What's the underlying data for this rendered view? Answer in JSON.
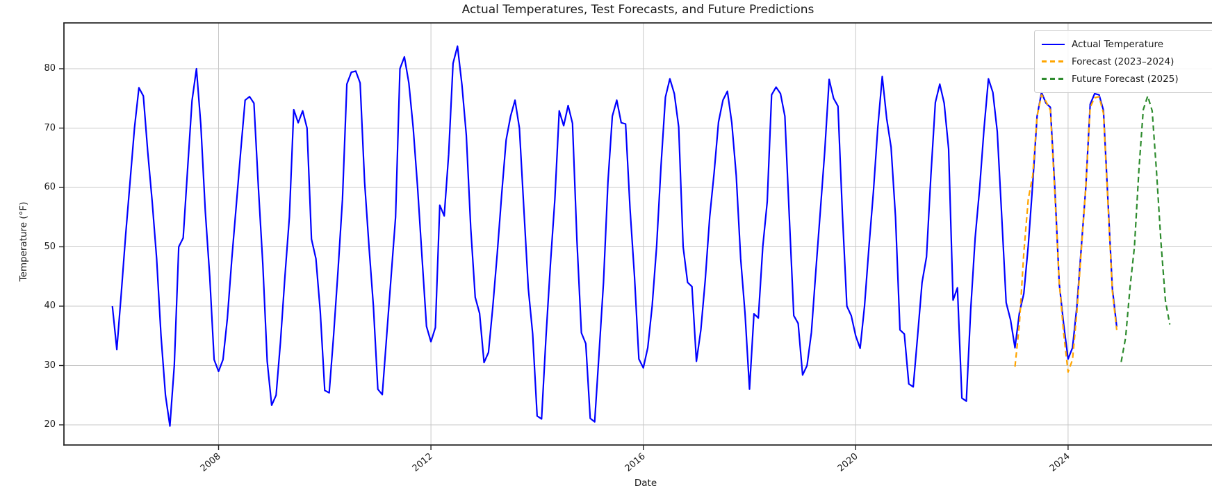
{
  "title": "Actual Temperatures, Test Forecasts, and Future Predictions",
  "axes": {
    "xlabel": "Date",
    "ylabel": "Temperature (°F)"
  },
  "chart_data": {
    "type": "line",
    "title": "Actual Temperatures, Test Forecasts, and Future Predictions",
    "xlabel": "Date",
    "ylabel": "Temperature (°F)",
    "grid": true,
    "legend_position": "upper right",
    "xticks": [
      2008,
      2012,
      2016,
      2020,
      2024
    ],
    "yticks": [
      20,
      30,
      40,
      50,
      60,
      70,
      80
    ],
    "ylim": [
      16.6,
      87.7
    ],
    "xlim_years": [
      2005.1,
      2026.7
    ],
    "x_frequency": "monthly",
    "colors": {
      "actual": "#0000ff",
      "forecast": "#ffa500",
      "future": "#2d8b2d",
      "grid": "#c8c8c8",
      "spine": "#262626"
    },
    "series": [
      {
        "name": "Actual Temperature",
        "slug": "actual-temperature",
        "color": "#0000ff",
        "style": "solid",
        "start_year": 2006,
        "values": [
          40,
          32.7,
          42,
          52,
          61,
          70,
          76.8,
          75.4,
          66,
          57.6,
          48,
          35,
          25,
          19.8,
          30,
          50,
          51.5,
          63,
          74.6,
          80,
          70.5,
          56,
          45,
          31,
          29,
          31,
          38,
          48,
          57,
          66,
          74.7,
          75.3,
          74.2,
          60,
          47,
          30.7,
          23.3,
          25,
          34,
          45,
          55,
          73.1,
          70.9,
          72.9,
          70,
          51.3,
          48,
          39,
          25.8,
          25.4,
          35,
          46,
          58,
          77.4,
          79.4,
          79.6,
          77.6,
          61,
          50,
          40,
          26,
          25.1,
          35,
          45,
          55,
          80,
          82,
          77.6,
          70,
          59.8,
          48,
          36.6,
          34,
          36.4,
          57,
          55.2,
          65.6,
          80.9,
          83.8,
          77.3,
          68.8,
          53.1,
          41.5,
          38.8,
          30.5,
          32.2,
          40,
          49,
          59,
          68,
          72,
          74.7,
          70,
          56.4,
          43,
          35.3,
          21.5,
          21,
          34.7,
          47,
          58,
          72.9,
          70.4,
          73.8,
          70.8,
          51,
          35.5,
          33.7,
          21.1,
          20.5,
          32,
          44,
          60.9,
          72,
          74.7,
          70.9,
          70.7,
          56.4,
          45,
          31.1,
          29.6,
          33,
          40,
          50,
          63.7,
          75.2,
          78.3,
          75.8,
          70.2,
          50,
          44,
          43.3,
          30.7,
          36,
          44.4,
          55,
          62.5,
          71,
          74.7,
          76.2,
          70.9,
          62,
          48,
          38.7,
          26,
          38.7,
          38,
          50,
          57.6,
          75.6,
          76.9,
          75.8,
          72,
          55,
          38.4,
          37.1,
          28.4,
          30,
          35.6,
          46,
          56,
          66,
          78.2,
          75,
          73.7,
          55.5,
          40,
          38.4,
          35,
          32.9,
          40,
          50,
          59.3,
          70.1,
          78.7,
          71.6,
          66.8,
          55,
          36,
          35.3,
          26.9,
          26.4,
          35,
          44,
          48.3,
          62,
          74.3,
          77.4,
          74.2,
          66.5,
          41,
          43.1,
          24.5,
          24,
          39.4,
          51.5,
          59.8,
          69.8,
          78.3,
          76,
          69.4,
          55.2,
          40.6,
          37.7,
          33,
          38.9,
          42.1,
          50.2,
          60.6,
          72,
          76,
          74.2,
          73.5,
          60,
          43.8,
          37,
          31.1,
          33,
          40,
          50,
          60,
          74,
          75.8,
          75.6,
          73,
          58,
          43,
          36.5
        ]
      },
      {
        "name": "Forecast (2023–2024)",
        "slug": "forecast-2023-2024",
        "color": "#ffa500",
        "style": "dashed",
        "start_year": 2023,
        "values": [
          29.8,
          37,
          49,
          58,
          62,
          72,
          75.6,
          74.5,
          73,
          59,
          44,
          35.5,
          28.9,
          31,
          39,
          49.5,
          60,
          73.5,
          75.1,
          75.3,
          72.5,
          57.5,
          42.5,
          36
        ]
      },
      {
        "name": "Future Forecast (2025)",
        "slug": "future-forecast-2025",
        "color": "#2d8b2d",
        "style": "dashed",
        "start_year": 2025,
        "values": [
          30.6,
          34.7,
          43.1,
          50,
          62.9,
          73.1,
          75.4,
          72.9,
          62.6,
          50.7,
          40.9,
          36.9
        ]
      }
    ]
  }
}
